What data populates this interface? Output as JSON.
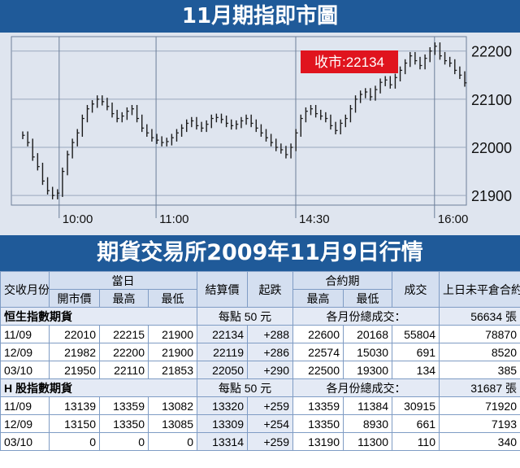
{
  "title": "11月期指即市圖",
  "table_title": "期貨交易所2009年11月9日行情",
  "chart_data": {
    "type": "candlestick",
    "x_tick_labels": [
      "10:00",
      "11:00",
      "14:30",
      "16:00"
    ],
    "y_ticks": [
      21900,
      22000,
      22100,
      22200
    ],
    "ylim": [
      21880,
      22230
    ],
    "close_label": "收市:22134",
    "close_value": 22134,
    "series_close": [
      22025,
      22010,
      21980,
      21960,
      21930,
      21910,
      21900,
      21905,
      21950,
      21985,
      22010,
      22030,
      22060,
      22080,
      22090,
      22100,
      22095,
      22085,
      22070,
      22060,
      22065,
      22075,
      22080,
      22060,
      22040,
      22030,
      22020,
      22015,
      22010,
      22012,
      22020,
      22030,
      22040,
      22050,
      22055,
      22045,
      22040,
      22048,
      22060,
      22062,
      22058,
      22050,
      22045,
      22048,
      22055,
      22060,
      22050,
      22040,
      22030,
      22020,
      22010,
      22000,
      21995,
      21985,
      22000,
      22030,
      22060,
      22075,
      22080,
      22070,
      22065,
      22060,
      22045,
      22035,
      22050,
      22060,
      22080,
      22100,
      22110,
      22115,
      22105,
      22120,
      22135,
      22140,
      22130,
      22145,
      22160,
      22175,
      22190,
      22180,
      22170,
      22185,
      22200,
      22210,
      22190,
      22180,
      22175,
      22160,
      22150,
      22134
    ]
  },
  "table": {
    "head_row1": {
      "month": "交收月份",
      "today": "當日",
      "settle": "結算價",
      "change": "起跌",
      "contract": "合約期",
      "volume": "成交",
      "oi": "上日未平倉合約(張)"
    },
    "head_row2": {
      "open": "開市價",
      "high": "最高",
      "low": "最低",
      "c_high": "最高",
      "c_low": "最低"
    },
    "sections": [
      {
        "name": "恒生指數期貨",
        "per_point": "每點 50 元",
        "total_label": "各月份總成交：",
        "total": "56634 張",
        "rows": [
          [
            "11/09",
            "22010",
            "22215",
            "21900",
            "22134",
            "+288",
            "22600",
            "20168",
            "55804",
            "78870"
          ],
          [
            "12/09",
            "21982",
            "22200",
            "21900",
            "22119",
            "+286",
            "22574",
            "15030",
            "691",
            "8520"
          ],
          [
            "03/10",
            "21950",
            "22110",
            "21853",
            "22050",
            "+290",
            "22500",
            "19300",
            "134",
            "385"
          ]
        ]
      },
      {
        "name": "H 股指數期貨",
        "per_point": "每點 50 元",
        "total_label": "各月份總成交：",
        "total": "31687 張",
        "rows": [
          [
            "11/09",
            "13139",
            "13359",
            "13082",
            "13320",
            "+259",
            "13359",
            "11384",
            "30915",
            "71920"
          ],
          [
            "12/09",
            "13150",
            "13350",
            "13085",
            "13309",
            "+254",
            "13350",
            "8930",
            "661",
            "7193"
          ],
          [
            "03/10",
            "0",
            "0",
            "0",
            "13314",
            "+259",
            "13190",
            "11300",
            "110",
            "340"
          ]
        ]
      }
    ]
  },
  "colors": {
    "banner": "#1f5a99",
    "close_badge": "#e0141e",
    "chart_bg": "#dfe5ef"
  }
}
